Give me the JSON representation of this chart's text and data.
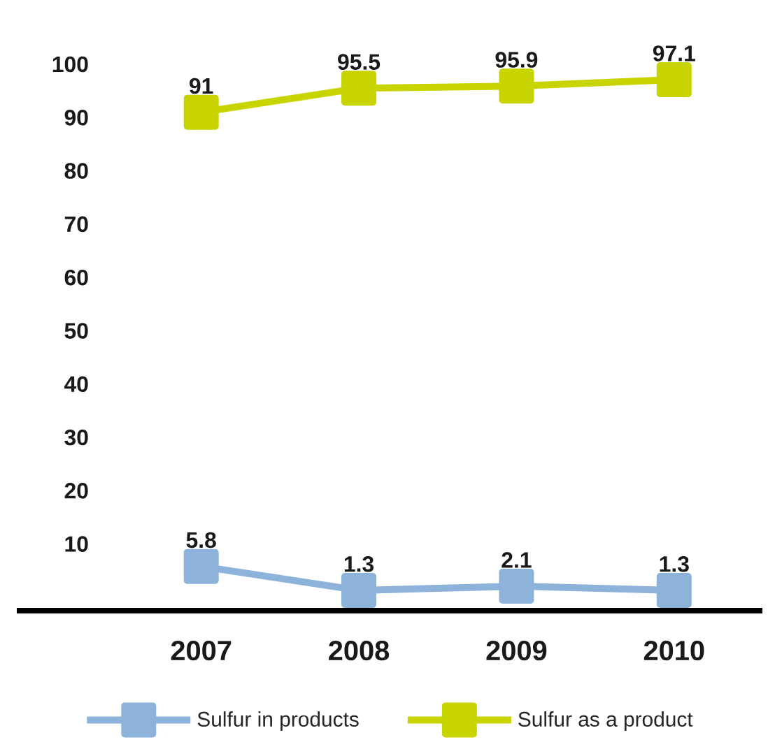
{
  "chart_data": {
    "type": "line",
    "categories": [
      "2007",
      "2008",
      "2009",
      "2010"
    ],
    "series": [
      {
        "name": "Sulfur in products",
        "color": "#8db3da",
        "values": [
          5.8,
          1.3,
          2.1,
          1.3
        ]
      },
      {
        "name": "Sulfur as a product",
        "color": "#c8d400",
        "values": [
          91,
          95.5,
          95.9,
          97.1
        ]
      }
    ],
    "ylim": [
      -2.5,
      100
    ],
    "yticks": [
      10,
      20,
      30,
      40,
      50,
      60,
      70,
      80,
      90,
      100
    ],
    "data_labels": true,
    "legend": "bottom",
    "marker": "square",
    "line_style": "solid"
  }
}
